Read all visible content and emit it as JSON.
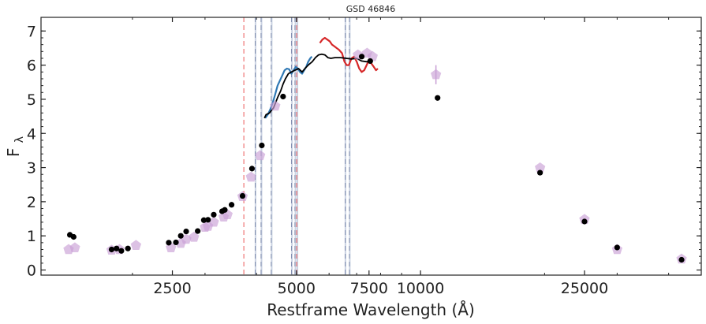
{
  "chart_data": {
    "type": "scatter",
    "title": "GSD 46846",
    "xlabel": "Restframe Wavelength (Å)",
    "ylabel": "F",
    "ylabel_sub": "λ",
    "xscale": "log",
    "xlim": [
      1200,
      48000
    ],
    "ylim": [
      -0.15,
      7.4
    ],
    "grid": false,
    "x_tick_labels": [
      {
        "value": 2500,
        "label": "2500"
      },
      {
        "value": 5000,
        "label": "5000"
      },
      {
        "value": 7500,
        "label": "7500"
      },
      {
        "value": 10000,
        "label": "10000"
      },
      {
        "value": 25000,
        "label": "25000"
      }
    ],
    "y_tick_labels": [
      {
        "value": 0,
        "label": "0"
      },
      {
        "value": 1,
        "label": "1"
      },
      {
        "value": 2,
        "label": "2"
      },
      {
        "value": 3,
        "label": "3"
      },
      {
        "value": 4,
        "label": "4"
      },
      {
        "value": 5,
        "label": "5"
      },
      {
        "value": 6,
        "label": "6"
      },
      {
        "value": 7,
        "label": "7"
      }
    ],
    "colors": {
      "photometry": "#000000",
      "model": "#c9a0d6",
      "spectrum_blue": "#2f78b4",
      "spectrum_red": "#d62728",
      "model_continuum": "#000000",
      "line_markers": "#8a9bbf",
      "red_dashed": "#f08080"
    },
    "red_dashed_lines": [
      3727,
      5007
    ],
    "line_bands": [
      [
        3960,
        3985
      ],
      [
        4095,
        4110
      ],
      [
        4335,
        4350
      ],
      [
        4855,
        4870
      ],
      [
        4950,
        4965
      ],
      [
        5005,
        5015
      ],
      [
        6545,
        6595
      ],
      [
        6705,
        6740
      ]
    ],
    "observed_photometry": [
      [
        1410,
        1.03
      ],
      [
        1440,
        0.97
      ],
      [
        1780,
        0.6
      ],
      [
        1830,
        0.63
      ],
      [
        1880,
        0.56
      ],
      [
        1950,
        0.63
      ],
      [
        2450,
        0.8
      ],
      [
        2550,
        0.81
      ],
      [
        2620,
        1.0
      ],
      [
        2700,
        1.13
      ],
      [
        2880,
        1.14
      ],
      [
        2980,
        1.46
      ],
      [
        3050,
        1.47
      ],
      [
        3150,
        1.62
      ],
      [
        3300,
        1.72
      ],
      [
        3350,
        1.76
      ],
      [
        3480,
        1.91
      ],
      [
        3700,
        2.17
      ],
      [
        3900,
        2.97
      ],
      [
        4120,
        3.65
      ],
      [
        4640,
        5.08
      ],
      [
        7200,
        6.25
      ],
      [
        7550,
        6.12
      ],
      [
        11000,
        5.04
      ],
      [
        19500,
        2.85
      ],
      [
        25000,
        1.42
      ],
      [
        30000,
        0.66
      ],
      [
        43000,
        0.3
      ]
    ],
    "model_photometry": [
      [
        1400,
        0.6
      ],
      [
        1450,
        0.65
      ],
      [
        1780,
        0.58
      ],
      [
        1860,
        0.6
      ],
      [
        2040,
        0.72
      ],
      [
        2480,
        0.65
      ],
      [
        2620,
        0.78
      ],
      [
        2700,
        0.9
      ],
      [
        2820,
        0.96
      ],
      [
        3000,
        1.25
      ],
      [
        3050,
        1.28
      ],
      [
        3150,
        1.4
      ],
      [
        3330,
        1.55
      ],
      [
        3400,
        1.62
      ],
      [
        3700,
        2.15
      ],
      [
        3880,
        2.72
      ],
      [
        4080,
        3.35
      ],
      [
        4440,
        4.8
      ],
      [
        7050,
        6.3
      ],
      [
        7420,
        6.35
      ],
      [
        7650,
        6.25
      ],
      [
        10900,
        5.72
      ],
      [
        19500,
        2.99
      ],
      [
        25000,
        1.48
      ],
      [
        30000,
        0.6
      ],
      [
        43000,
        0.32
      ]
    ],
    "model_photometry_error": [
      [
        10900,
        5.72,
        0.28
      ]
    ],
    "spectrum_blue": [
      [
        4200,
        4.45
      ],
      [
        4260,
        4.55
      ],
      [
        4320,
        4.7
      ],
      [
        4380,
        4.9
      ],
      [
        4440,
        5.15
      ],
      [
        4500,
        5.4
      ],
      [
        4560,
        5.55
      ],
      [
        4620,
        5.7
      ],
      [
        4680,
        5.85
      ],
      [
        4740,
        5.9
      ],
      [
        4800,
        5.88
      ],
      [
        4860,
        5.75
      ],
      [
        4920,
        5.85
      ],
      [
        4980,
        5.95
      ],
      [
        5040,
        5.9
      ],
      [
        5100,
        5.8
      ],
      [
        5160,
        5.75
      ],
      [
        5220,
        5.85
      ],
      [
        5280,
        5.95
      ],
      [
        5340,
        6.1
      ],
      [
        5400,
        6.2
      ],
      [
        5450,
        6.25
      ]
    ],
    "spectrum_red": [
      [
        5700,
        6.65
      ],
      [
        5780,
        6.75
      ],
      [
        5860,
        6.8
      ],
      [
        5940,
        6.75
      ],
      [
        6020,
        6.7
      ],
      [
        6100,
        6.6
      ],
      [
        6180,
        6.55
      ],
      [
        6260,
        6.5
      ],
      [
        6340,
        6.45
      ],
      [
        6450,
        6.35
      ],
      [
        6540,
        6.1
      ],
      [
        6620,
        6.0
      ],
      [
        6700,
        6.0
      ],
      [
        6800,
        6.2
      ],
      [
        6900,
        6.25
      ],
      [
        7000,
        6.1
      ],
      [
        7100,
        5.9
      ],
      [
        7200,
        5.8
      ],
      [
        7300,
        5.85
      ],
      [
        7400,
        6.0
      ],
      [
        7500,
        6.15
      ],
      [
        7600,
        6.05
      ],
      [
        7700,
        5.95
      ],
      [
        7800,
        5.85
      ],
      [
        7880,
        5.9
      ]
    ],
    "model_continuum": [
      [
        4180,
        4.45
      ],
      [
        4220,
        4.55
      ],
      [
        4300,
        4.6
      ],
      [
        4400,
        4.75
      ],
      [
        4500,
        5.05
      ],
      [
        4580,
        5.25
      ],
      [
        4640,
        5.45
      ],
      [
        4700,
        5.6
      ],
      [
        4780,
        5.75
      ],
      [
        4860,
        5.8
      ],
      [
        4960,
        5.85
      ],
      [
        5060,
        5.9
      ],
      [
        5160,
        5.8
      ],
      [
        5260,
        5.92
      ],
      [
        5360,
        6.02
      ],
      [
        5460,
        6.1
      ],
      [
        5560,
        6.22
      ],
      [
        5660,
        6.3
      ],
      [
        5760,
        6.32
      ],
      [
        5860,
        6.3
      ],
      [
        5960,
        6.22
      ],
      [
        6060,
        6.2
      ],
      [
        6200,
        6.22
      ],
      [
        6400,
        6.22
      ],
      [
        6600,
        6.2
      ],
      [
        6800,
        6.18
      ],
      [
        7000,
        6.2
      ],
      [
        7200,
        6.12
      ],
      [
        7400,
        6.1
      ],
      [
        7500,
        6.12
      ]
    ]
  }
}
